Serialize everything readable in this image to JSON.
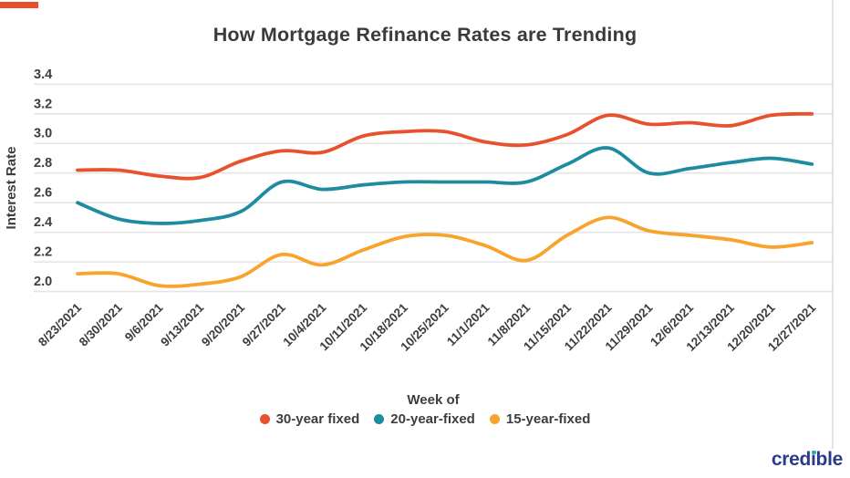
{
  "accent_bar": {
    "color": "#e8502b"
  },
  "title": "How Mortgage Refinance Rates are Trending",
  "chart_data": {
    "type": "line",
    "title": "How Mortgage Refinance Rates are Trending",
    "xlabel": "Week of",
    "ylabel": "Interest Rate",
    "ylim": [
      2.0,
      3.4
    ],
    "yticks": [
      3.4,
      3.2,
      3.0,
      2.8,
      2.6,
      2.4,
      2.2,
      2.0
    ],
    "grid": true,
    "legend_position": "bottom",
    "x": [
      "8/23/2021",
      "8/30/2021",
      "9/6/2021",
      "9/13/2021",
      "9/20/2021",
      "9/27/2021",
      "10/4/2021",
      "10/11/2021",
      "10/18/2021",
      "10/25/2021",
      "11/1/2021",
      "11/8/2021",
      "11/15/2021",
      "11/22/2021",
      "11/29/2021",
      "12/6/2021",
      "12/13/2021",
      "12/20/2021",
      "12/27/2021"
    ],
    "series": [
      {
        "name": "30-year fixed",
        "color": "#e8512d",
        "values": [
          2.82,
          2.82,
          2.78,
          2.77,
          2.88,
          2.95,
          2.94,
          3.05,
          3.08,
          3.08,
          3.01,
          2.99,
          3.06,
          3.19,
          3.13,
          3.14,
          3.12,
          3.19,
          3.2
        ]
      },
      {
        "name": "20-year-fixed",
        "color": "#1c8c9e",
        "values": [
          2.6,
          2.49,
          2.46,
          2.48,
          2.54,
          2.74,
          2.69,
          2.72,
          2.74,
          2.74,
          2.74,
          2.74,
          2.86,
          2.97,
          2.8,
          2.83,
          2.87,
          2.9,
          2.86
        ]
      },
      {
        "name": "15-year-fixed",
        "color": "#f8a42c",
        "values": [
          2.12,
          2.12,
          2.04,
          2.05,
          2.1,
          2.25,
          2.18,
          2.28,
          2.37,
          2.38,
          2.31,
          2.21,
          2.38,
          2.5,
          2.41,
          2.38,
          2.35,
          2.3,
          2.33
        ]
      }
    ]
  },
  "brand": {
    "label": "credible"
  },
  "style": {
    "grid_color": "#e5e5e5",
    "axis_text_color": "#3d3d3d",
    "edge_line_color": "#d9d9d9"
  }
}
